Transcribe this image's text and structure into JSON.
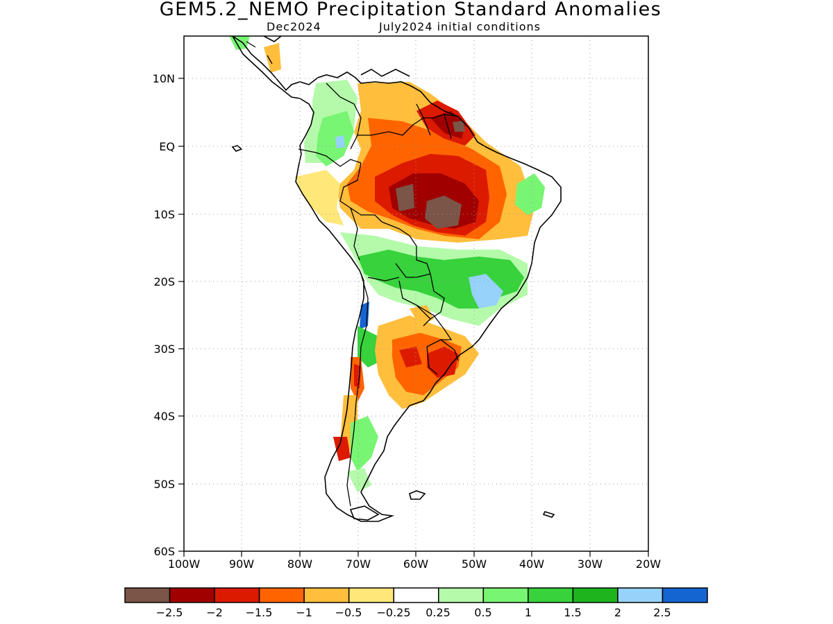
{
  "title": "GEM5.2_NEMO Precipitation Standard Anomalies",
  "subtitle_left": "Dec2024",
  "subtitle_right": "July2024 initial conditions",
  "lat_labels": [
    "10N",
    "EQ",
    "10S",
    "20S",
    "30S",
    "40S",
    "50S",
    "60S"
  ],
  "lon_labels": [
    "100W",
    "90W",
    "80W",
    "70W",
    "60W",
    "50W",
    "40W",
    "30W",
    "20W"
  ],
  "colorbar": {
    "colors": [
      "#7a5548",
      "#a00000",
      "#dc1a00",
      "#ff6400",
      "#ffbe3c",
      "#ffe77a",
      "#ffffff",
      "#b4faaa",
      "#78f573",
      "#37d23c",
      "#1eb41e",
      "#96d2fa",
      "#1464d2"
    ],
    "tick_labels": [
      "−2.5",
      "−2",
      "−1.5",
      "−1",
      "−0.5",
      "−0.25",
      "0.25",
      "0.5",
      "1",
      "1.5",
      "2",
      "2.5"
    ]
  },
  "map": {
    "lon_range": [
      -100,
      -20
    ],
    "lat_range": [
      -60,
      15
    ],
    "grid": true,
    "region": "South America"
  }
}
